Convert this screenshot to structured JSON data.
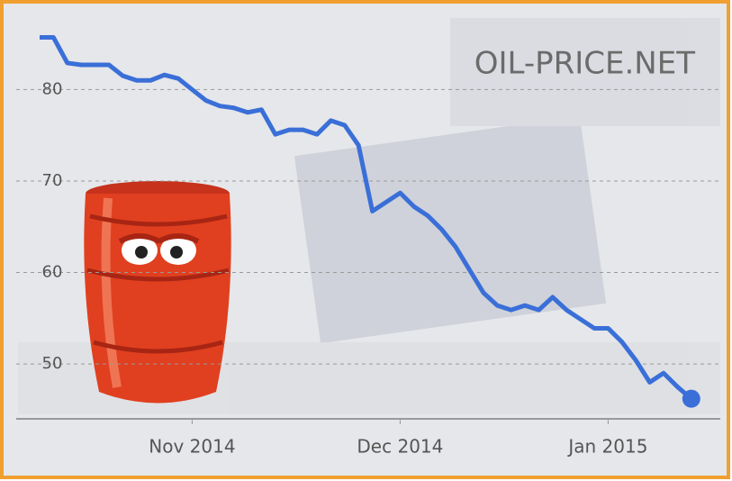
{
  "chart_data": {
    "type": "line",
    "watermark": "OIL-PRICE.NET",
    "categories": [
      null,
      null,
      null,
      null,
      null,
      null,
      null,
      null,
      null,
      null,
      null,
      "Nov 2014",
      null,
      null,
      null,
      null,
      null,
      null,
      null,
      null,
      null,
      null,
      null,
      null,
      null,
      null,
      "Dec 2014",
      null,
      null,
      null,
      null,
      null,
      null,
      null,
      null,
      null,
      null,
      null,
      null,
      null,
      null,
      "Jan 2015",
      null,
      null,
      null,
      null,
      null,
      null
    ],
    "series": [
      {
        "color": "#3a6fd8",
        "values": [
          85.7,
          85.7,
          82.9,
          82.7,
          82.7,
          82.7,
          81.5,
          81.0,
          81.0,
          81.6,
          81.2,
          80.0,
          78.8,
          78.2,
          78.0,
          77.5,
          77.8,
          75.1,
          75.6,
          75.6,
          75.1,
          76.6,
          76.1,
          73.9,
          66.7,
          67.7,
          68.7,
          67.2,
          66.2,
          64.7,
          62.8,
          60.3,
          57.8,
          56.4,
          55.9,
          56.4,
          55.9,
          57.3,
          55.9,
          54.9,
          53.9,
          53.9,
          52.4,
          50.4,
          48.0,
          49.0,
          47.5,
          46.2
        ]
      }
    ],
    "ylim": [
      44,
      89
    ],
    "yticks": [
      50,
      60,
      70,
      80
    ],
    "grid": true
  }
}
